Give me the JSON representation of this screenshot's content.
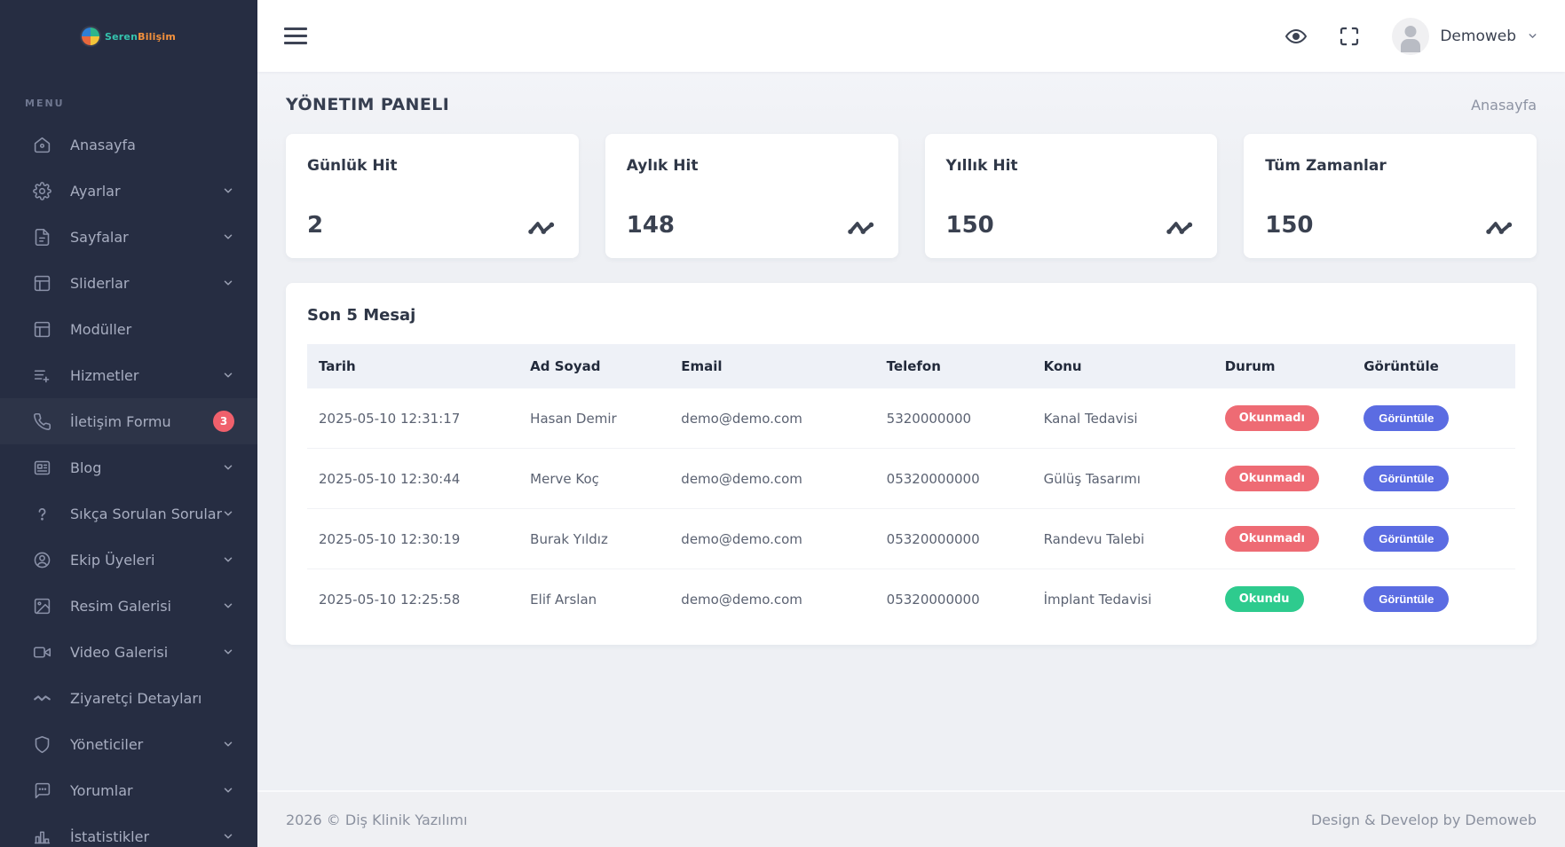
{
  "brand": {
    "name_primary": "Seren",
    "name_secondary": "Bilişim"
  },
  "sidebar": {
    "menu_label": "MENU",
    "items": [
      {
        "key": "anasayfa",
        "label": "Anasayfa",
        "icon": "home",
        "chevron": false
      },
      {
        "key": "ayarlar",
        "label": "Ayarlar",
        "icon": "gear",
        "chevron": true
      },
      {
        "key": "sayfalar",
        "label": "Sayfalar",
        "icon": "file",
        "chevron": true
      },
      {
        "key": "sliderlar",
        "label": "Sliderlar",
        "icon": "layout",
        "chevron": true
      },
      {
        "key": "moduller",
        "label": "Modüller",
        "icon": "layout",
        "chevron": false
      },
      {
        "key": "hizmetler",
        "label": "Hizmetler",
        "icon": "list-plus",
        "chevron": true
      },
      {
        "key": "iletisim-formu",
        "label": "İletişim Formu",
        "icon": "phone",
        "chevron": false,
        "badge": "3",
        "highlight": true
      },
      {
        "key": "blog",
        "label": "Blog",
        "icon": "blog",
        "chevron": true
      },
      {
        "key": "sikca-sorulan-sorular",
        "label": "Sıkça Sorulan Sorular",
        "icon": "question",
        "chevron": true
      },
      {
        "key": "ekip-uyeleri",
        "label": "Ekip Üyeleri",
        "icon": "user",
        "chevron": true
      },
      {
        "key": "resim-galerisi",
        "label": "Resim Galerisi",
        "icon": "image",
        "chevron": true
      },
      {
        "key": "video-galerisi",
        "label": "Video Galerisi",
        "icon": "video",
        "chevron": true
      },
      {
        "key": "ziyaretci-detaylari",
        "label": "Ziyaretçi Detayları",
        "icon": "activity",
        "chevron": false
      },
      {
        "key": "yoneticiler",
        "label": "Yöneticiler",
        "icon": "shield",
        "chevron": true
      },
      {
        "key": "yorumlar",
        "label": "Yorumlar",
        "icon": "comment",
        "chevron": true
      },
      {
        "key": "istatistikler",
        "label": "İstatistikler",
        "icon": "chart",
        "chevron": true
      }
    ]
  },
  "topbar": {
    "user_name": "Demoweb"
  },
  "page": {
    "title": "YÖNETIM PANELI",
    "breadcrumb": "Anasayfa"
  },
  "stats": [
    {
      "key": "gunluk-hit",
      "label": "Günlük Hit",
      "value": "2"
    },
    {
      "key": "aylik-hit",
      "label": "Aylık Hit",
      "value": "148"
    },
    {
      "key": "yillik-hit",
      "label": "Yıllık Hit",
      "value": "150"
    },
    {
      "key": "tum-zamanlar",
      "label": "Tüm Zamanlar",
      "value": "150"
    }
  ],
  "messages": {
    "title": "Son 5 Mesaj",
    "columns": [
      "Tarih",
      "Ad Soyad",
      "Email",
      "Telefon",
      "Konu",
      "Durum",
      "Görüntüle"
    ],
    "rows": [
      {
        "date": "2025-05-10 12:31:17",
        "name": "Hasan Demir",
        "email": "demo@demo.com",
        "phone": "5320000000",
        "subject": "Kanal Tedavisi",
        "status": "Okunmadı",
        "status_type": "unread",
        "action": "Görüntüle"
      },
      {
        "date": "2025-05-10 12:30:44",
        "name": "Merve Koç",
        "email": "demo@demo.com",
        "phone": "05320000000",
        "subject": "Gülüş Tasarımı",
        "status": "Okunmadı",
        "status_type": "unread",
        "action": "Görüntüle"
      },
      {
        "date": "2025-05-10 12:30:19",
        "name": "Burak Yıldız",
        "email": "demo@demo.com",
        "phone": "05320000000",
        "subject": "Randevu Talebi",
        "status": "Okunmadı",
        "status_type": "unread",
        "action": "Görüntüle"
      },
      {
        "date": "2025-05-10 12:25:58",
        "name": "Elif Arslan",
        "email": "demo@demo.com",
        "phone": "05320000000",
        "subject": "İmplant Tedavisi",
        "status": "Okundu",
        "status_type": "read",
        "action": "Görüntüle"
      }
    ]
  },
  "footer": {
    "left": "2026 © Diş Klinik Yazılımı",
    "right": "Design & Develop by Demoweb"
  },
  "colors": {
    "sidebar_bg": "#262d42",
    "status_unread": "#ee6b74",
    "status_read": "#2ecb8e",
    "action_button": "#5b6ce2",
    "badge": "#f0606c"
  }
}
